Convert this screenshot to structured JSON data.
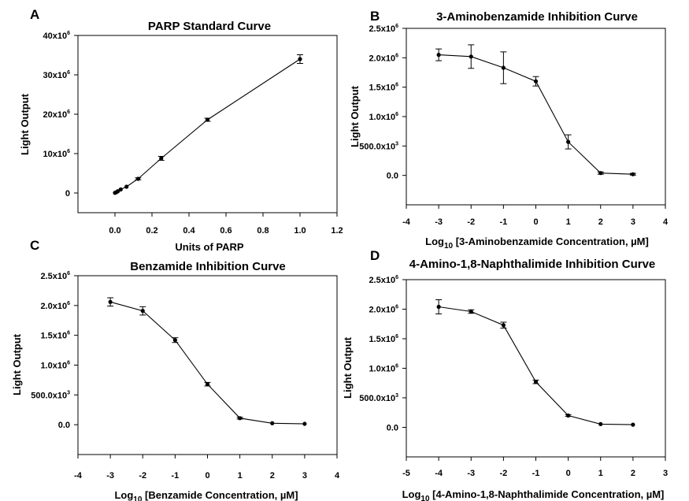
{
  "chart_data": [
    {
      "panel": "A",
      "type": "line",
      "title": "PARP Standard Curve",
      "xlabel": "Units of PARP",
      "ylabel": "Light Output",
      "xlim": [
        -0.2,
        1.2
      ],
      "ylim": [
        -5000000,
        40000000
      ],
      "xticks": [
        0.0,
        0.2,
        0.4,
        0.6,
        0.8,
        1.0,
        1.2
      ],
      "xtick_labels": [
        "0.0",
        "0.2",
        "0.4",
        "0.6",
        "0.8",
        "1.0",
        "1.2"
      ],
      "yticks": [
        0,
        10000000,
        20000000,
        30000000,
        40000000
      ],
      "ytick_labels": [
        {
          "base": "0",
          "sup": ""
        },
        {
          "base": "10x10",
          "sup": "6"
        },
        {
          "base": "20x10",
          "sup": "6"
        },
        {
          "base": "30x10",
          "sup": "6"
        },
        {
          "base": "40x10",
          "sup": "6"
        }
      ],
      "x": [
        0.0,
        0.0078,
        0.0156,
        0.031,
        0.0625,
        0.125,
        0.25,
        0.5,
        1.0
      ],
      "values": [
        50000,
        200000,
        450000,
        900000,
        1600000,
        3600000,
        8800000,
        18600000,
        34000000
      ],
      "errors": [
        100000,
        100000,
        100000,
        150000,
        200000,
        250000,
        500000,
        400000,
        1100000
      ],
      "grid": false
    },
    {
      "panel": "B",
      "type": "line",
      "title": "3-Aminobenzamide Inhibition Curve",
      "xlabel_prefix": "Log",
      "xlabel_sub": "10",
      "xlabel_rest": " [3-Aminobenzamide Concentration, µM]",
      "ylabel": "Light Output",
      "xlim": [
        -4,
        4
      ],
      "ylim": [
        -500000,
        2500000
      ],
      "xticks": [
        -4,
        -3,
        -2,
        -1,
        0,
        1,
        2,
        3,
        4
      ],
      "xtick_labels": [
        "-4",
        "-3",
        "-2",
        "-1",
        "0",
        "1",
        "2",
        "3",
        "4"
      ],
      "yticks": [
        0,
        500000,
        1000000,
        1500000,
        2000000,
        2500000
      ],
      "ytick_labels": [
        {
          "base": "0.0",
          "sup": ""
        },
        {
          "base": "500.0x10",
          "sup": "3"
        },
        {
          "base": "1.0x10",
          "sup": "6"
        },
        {
          "base": "1.5x10",
          "sup": "6"
        },
        {
          "base": "2.0x10",
          "sup": "6"
        },
        {
          "base": "2.5x10",
          "sup": "6"
        }
      ],
      "x": [
        -3,
        -2,
        -1,
        0,
        1,
        2,
        3
      ],
      "values": [
        2050000,
        2020000,
        1830000,
        1600000,
        570000,
        40000,
        20000
      ],
      "errors": [
        100000,
        200000,
        270000,
        80000,
        120000,
        20000,
        15000
      ],
      "grid": false
    },
    {
      "panel": "C",
      "type": "line",
      "title": "Benzamide Inhibition Curve",
      "xlabel_prefix": "Log",
      "xlabel_sub": "10",
      "xlabel_rest": " [Benzamide Concentration, µM]",
      "ylabel": "Light Output",
      "xlim": [
        -4,
        4
      ],
      "ylim": [
        -500000,
        2500000
      ],
      "xticks": [
        -4,
        -3,
        -2,
        -1,
        0,
        1,
        2,
        3,
        4
      ],
      "xtick_labels": [
        "-4",
        "-3",
        "-2",
        "-1",
        "0",
        "1",
        "2",
        "3",
        "4"
      ],
      "yticks": [
        0,
        500000,
        1000000,
        1500000,
        2000000,
        2500000
      ],
      "ytick_labels": [
        {
          "base": "0.0",
          "sup": ""
        },
        {
          "base": "500.0x10",
          "sup": "3"
        },
        {
          "base": "1.0x10",
          "sup": "6"
        },
        {
          "base": "1.5x10",
          "sup": "6"
        },
        {
          "base": "2.0x10",
          "sup": "6"
        },
        {
          "base": "2.5x10",
          "sup": "6"
        }
      ],
      "x": [
        -3,
        -2,
        -1,
        0,
        1,
        2,
        3
      ],
      "values": [
        2060000,
        1910000,
        1420000,
        680000,
        110000,
        25000,
        15000
      ],
      "errors": [
        70000,
        70000,
        40000,
        30000,
        15000,
        10000,
        10000
      ],
      "grid": false
    },
    {
      "panel": "D",
      "type": "line",
      "title": "4-Amino-1,8-Naphthalimide Inhibition Curve",
      "xlabel_prefix": "Log",
      "xlabel_sub": "10",
      "xlabel_rest": " [4-Amino-1,8-Naphthalimide Concentration, µM]",
      "ylabel": "Light Output",
      "xlim": [
        -5,
        3
      ],
      "ylim": [
        -500000,
        2500000
      ],
      "xticks": [
        -5,
        -4,
        -3,
        -2,
        -1,
        0,
        1,
        2,
        3
      ],
      "xtick_labels": [
        "-5",
        "-4",
        "-3",
        "-2",
        "-1",
        "0",
        "1",
        "2",
        "3"
      ],
      "yticks": [
        0,
        500000,
        1000000,
        1500000,
        2000000,
        2500000
      ],
      "ytick_labels": [
        {
          "base": "0.0",
          "sup": ""
        },
        {
          "base": "500.0x10",
          "sup": "3"
        },
        {
          "base": "1.0x10",
          "sup": "6"
        },
        {
          "base": "1.5x10",
          "sup": "6"
        },
        {
          "base": "2.0x10",
          "sup": "6"
        },
        {
          "base": "2.5x10",
          "sup": "6"
        }
      ],
      "x": [
        -4,
        -3,
        -2,
        -1,
        0,
        1,
        2
      ],
      "values": [
        2040000,
        1960000,
        1730000,
        770000,
        200000,
        55000,
        45000
      ],
      "errors": [
        120000,
        30000,
        50000,
        30000,
        15000,
        10000,
        10000
      ],
      "grid": false
    }
  ]
}
